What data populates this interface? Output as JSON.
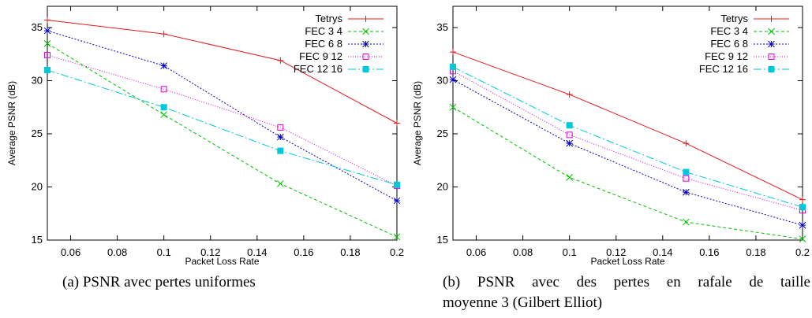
{
  "colors": {
    "tetrys": "#e41a1c",
    "fec34": "#00c000",
    "fec68": "#0000c8",
    "fec912": "#e000e0",
    "fec1216": "#00c8d8"
  },
  "chart_data": [
    {
      "type": "line",
      "xlabel": "Packet Loss Rate",
      "ylabel": "Average PSNR (dB)",
      "xlim": [
        0.05,
        0.2
      ],
      "ylim": [
        15,
        37
      ],
      "xticks": [
        "0.06",
        "0.08",
        "0.1",
        "0.12",
        "0.14",
        "0.16",
        "0.18",
        "0.2"
      ],
      "yticks": [
        "15",
        "20",
        "25",
        "30",
        "35"
      ],
      "grid": false,
      "legend": "top-right",
      "series": [
        {
          "name": "Tetrys",
          "x": [
            0.05,
            0.1,
            0.15,
            0.2
          ],
          "values": [
            35.7,
            34.4,
            31.9,
            26.0
          ]
        },
        {
          "name": "FEC 3 4",
          "x": [
            0.05,
            0.1,
            0.15,
            0.2
          ],
          "values": [
            33.5,
            26.8,
            20.3,
            15.3
          ]
        },
        {
          "name": "FEC 6 8",
          "x": [
            0.05,
            0.1,
            0.15,
            0.2
          ],
          "values": [
            34.7,
            31.4,
            24.7,
            18.7
          ]
        },
        {
          "name": "FEC 9 12",
          "x": [
            0.05,
            0.1,
            0.15,
            0.2
          ],
          "values": [
            32.4,
            29.2,
            25.6,
            20.1
          ]
        },
        {
          "name": "FEC 12 16",
          "x": [
            0.05,
            0.1,
            0.15,
            0.2
          ],
          "values": [
            31.0,
            27.5,
            23.4,
            20.2
          ]
        }
      ]
    },
    {
      "type": "line",
      "xlabel": "Packet Loss Rate",
      "ylabel": "Average PSNR (dB)",
      "xlim": [
        0.05,
        0.2
      ],
      "ylim": [
        15,
        37
      ],
      "xticks": [
        "0.06",
        "0.08",
        "0.1",
        "0.12",
        "0.14",
        "0.16",
        "0.18",
        "0.2"
      ],
      "yticks": [
        "15",
        "20",
        "25",
        "30",
        "35"
      ],
      "grid": false,
      "legend": "top-right",
      "series": [
        {
          "name": "Tetrys",
          "x": [
            0.05,
            0.1,
            0.15,
            0.2
          ],
          "values": [
            32.7,
            28.7,
            24.1,
            18.8
          ]
        },
        {
          "name": "FEC 3 4",
          "x": [
            0.05,
            0.1,
            0.15,
            0.2
          ],
          "values": [
            27.5,
            20.9,
            16.7,
            15.1
          ]
        },
        {
          "name": "FEC 6 8",
          "x": [
            0.05,
            0.1,
            0.15,
            0.2
          ],
          "values": [
            30.1,
            24.1,
            19.5,
            16.4
          ]
        },
        {
          "name": "FEC 9 12",
          "x": [
            0.05,
            0.1,
            0.15,
            0.2
          ],
          "values": [
            30.9,
            24.9,
            20.8,
            17.8
          ]
        },
        {
          "name": "FEC 12 16",
          "x": [
            0.05,
            0.1,
            0.15,
            0.2
          ],
          "values": [
            31.3,
            25.8,
            21.4,
            18.1
          ]
        }
      ]
    }
  ],
  "captions": {
    "a": "(a)  PSNR avec pertes uniformes",
    "b_line1": "(b)  PSNR avec des pertes en rafale de taille",
    "b_line2": "moyenne 3 (Gilbert Elliot)"
  }
}
